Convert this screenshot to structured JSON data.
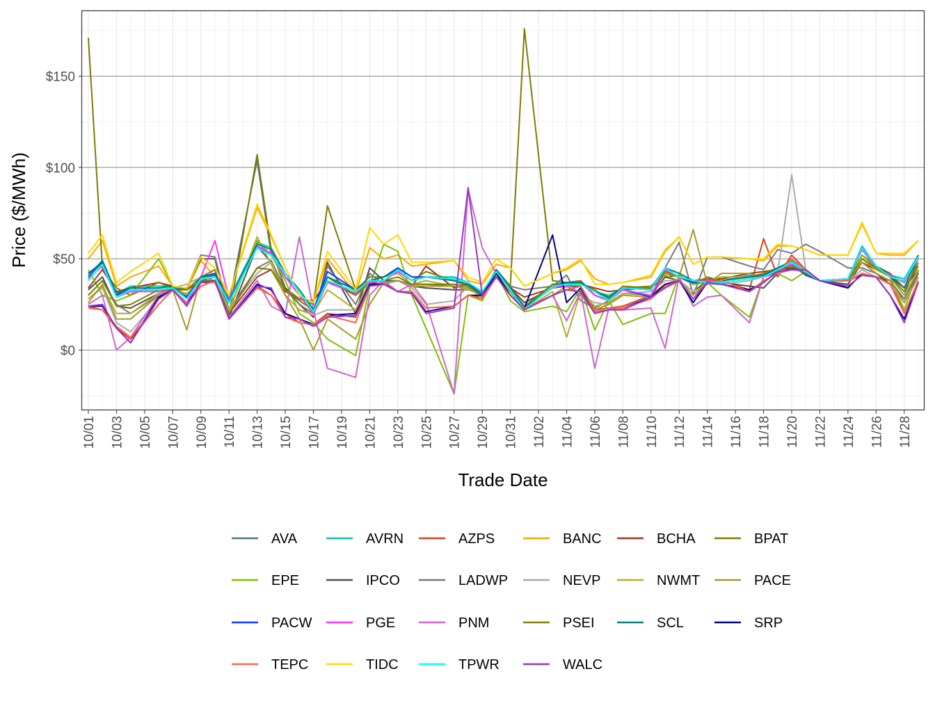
{
  "chart_data": {
    "type": "line",
    "title": "",
    "xlabel": "Trade Date",
    "ylabel": "Price ($/MWh)",
    "ylim": [
      -33,
      186
    ],
    "y_ticks": [
      0,
      50,
      100,
      150
    ],
    "y_tick_labels": [
      "$0",
      "$50",
      "$100",
      "$150"
    ],
    "x_tick_labels": [
      "10/01",
      "10/03",
      "10/05",
      "10/07",
      "10/09",
      "10/11",
      "10/13",
      "10/15",
      "10/17",
      "10/19",
      "10/21",
      "10/23",
      "10/25",
      "10/27",
      "10/29",
      "10/31",
      "11/02",
      "11/04",
      "11/06",
      "11/08",
      "11/10",
      "11/12",
      "11/14",
      "11/16",
      "11/18",
      "11/20",
      "11/22",
      "11/24",
      "11/26",
      "11/28"
    ],
    "x_range": [
      "10/01",
      "11/29"
    ],
    "grid": true,
    "legend_position": "bottom",
    "x": [
      "10/01",
      "10/02",
      "10/03",
      "10/04",
      "10/06",
      "10/07",
      "10/08",
      "10/09",
      "10/10",
      "10/11",
      "10/13",
      "10/14",
      "10/15",
      "10/16",
      "10/17",
      "10/18",
      "10/20",
      "10/21",
      "10/22",
      "10/23",
      "10/24",
      "10/25",
      "10/27",
      "10/28",
      "10/29",
      "10/30",
      "10/31",
      "11/01",
      "11/03",
      "11/04",
      "11/05",
      "11/06",
      "11/07",
      "11/08",
      "11/10",
      "11/11",
      "11/12",
      "11/13",
      "11/14",
      "11/15",
      "11/17",
      "11/18",
      "11/19",
      "11/20",
      "11/21",
      "11/22",
      "11/24",
      "11/25",
      "11/26",
      "11/27",
      "11/28",
      "11/29"
    ],
    "series": [
      {
        "name": "AVA",
        "color": "#4E7389",
        "values": [
          40,
          48,
          31,
          33,
          33,
          34,
          29,
          38,
          40,
          26,
          104,
          52,
          40,
          33,
          22,
          40,
          33,
          38,
          40,
          44,
          38,
          40,
          39,
          37,
          30,
          44,
          35,
          23,
          35,
          36,
          37,
          32,
          27,
          34,
          33,
          44,
          40,
          37,
          38,
          38,
          40,
          40,
          43,
          47,
          41,
          38,
          39,
          55,
          46,
          40,
          30,
          51
        ]
      },
      {
        "name": "AVRN",
        "color": "#00C5A8",
        "values": [
          41,
          49,
          31,
          35,
          35,
          35,
          28,
          40,
          41,
          28,
          59,
          56,
          42,
          33,
          22,
          40,
          33,
          38,
          40,
          45,
          40,
          40,
          40,
          37,
          31,
          44,
          34,
          23,
          36,
          37,
          37,
          32,
          30,
          34,
          34,
          45,
          42,
          38,
          38,
          38,
          41,
          40,
          45,
          49,
          43,
          38,
          39,
          57,
          46,
          41,
          39,
          52
        ]
      },
      {
        "name": "AZPS",
        "color": "#D9401F",
        "values": [
          24,
          22,
          12,
          6,
          25,
          33,
          26,
          35,
          38,
          17,
          35,
          30,
          20,
          15,
          14,
          20,
          18,
          35,
          37,
          32,
          32,
          23,
          24,
          30,
          29,
          40,
          30,
          22,
          30,
          33,
          35,
          22,
          23,
          24,
          30,
          36,
          38,
          30,
          37,
          38,
          33,
          61,
          40,
          52,
          44,
          38,
          38,
          41,
          40,
          38,
          20,
          38
        ]
      },
      {
        "name": "BANC",
        "color": "#FFA500",
        "values": [
          50,
          60,
          35,
          40,
          46,
          35,
          33,
          49,
          40,
          30,
          78,
          62,
          45,
          30,
          26,
          50,
          31,
          56,
          50,
          52,
          46,
          47,
          49,
          38,
          36,
          47,
          45,
          35,
          42,
          44,
          49,
          39,
          36,
          37,
          40,
          54,
          62,
          47,
          51,
          51,
          50,
          49,
          57,
          57,
          55,
          52,
          52,
          69,
          53,
          52,
          52,
          60
        ]
      },
      {
        "name": "BCHA",
        "color": "#A0361E",
        "values": [
          34,
          44,
          32,
          34,
          37,
          35,
          33,
          37,
          37,
          20,
          40,
          44,
          32,
          28,
          27,
          38,
          30,
          37,
          36,
          38,
          35,
          46,
          34,
          36,
          30,
          40,
          34,
          29,
          34,
          36,
          36,
          34,
          32,
          33,
          34,
          40,
          41,
          36,
          39,
          39,
          42,
          43,
          44,
          45,
          42,
          38,
          38,
          48,
          44,
          41,
          34,
          44
        ]
      },
      {
        "name": "BPAT",
        "color": "#7F7A00",
        "values": [
          171,
          45,
          34,
          30,
          37,
          34,
          33,
          40,
          44,
          19,
          107,
          55,
          34,
          28,
          25,
          79,
          33,
          40,
          40,
          44,
          38,
          43,
          38,
          35,
          30,
          44,
          35,
          176,
          38,
          37,
          38,
          30,
          27,
          34,
          35,
          42,
          40,
          36,
          40,
          38,
          40,
          42,
          45,
          47,
          43,
          38,
          39,
          52,
          46,
          42,
          34,
          46
        ]
      },
      {
        "name": "EPE",
        "color": "#7FBF00",
        "values": [
          44,
          30,
          27,
          30,
          50,
          35,
          30,
          37,
          38,
          22,
          60,
          52,
          38,
          20,
          15,
          6,
          -3,
          35,
          58,
          54,
          30,
          12,
          -24,
          30,
          27,
          42,
          27,
          21,
          24,
          21,
          34,
          11,
          27,
          14,
          20,
          20,
          41,
          36,
          37,
          30,
          18,
          40,
          42,
          38,
          43,
          38,
          39,
          52,
          45,
          40,
          22,
          44
        ]
      },
      {
        "name": "IPCO",
        "color": "#4D4D4D",
        "values": [
          33,
          40,
          24,
          23,
          31,
          33,
          34,
          50,
          50,
          18,
          57,
          48,
          34,
          25,
          18,
          48,
          20,
          45,
          38,
          38,
          35,
          34,
          33,
          33,
          32,
          40,
          34,
          26,
          34,
          35,
          35,
          22,
          25,
          31,
          30,
          40,
          38,
          32,
          38,
          37,
          35,
          34,
          42,
          45,
          42,
          38,
          36,
          48,
          42,
          36,
          28,
          42
        ]
      },
      {
        "name": "LADWP",
        "color": "#787878",
        "values": [
          30,
          38,
          25,
          20,
          30,
          34,
          34,
          52,
          51,
          22,
          45,
          49,
          33,
          25,
          20,
          46,
          25,
          42,
          36,
          38,
          36,
          36,
          35,
          34,
          32,
          40,
          35,
          33,
          35,
          41,
          27,
          23,
          27,
          34,
          34,
          45,
          59,
          30,
          51,
          51,
          46,
          44,
          55,
          53,
          58,
          54,
          45,
          45,
          42,
          38,
          28,
          43
        ]
      },
      {
        "name": "NEVP",
        "color": "#AAAAAA",
        "values": [
          28,
          34,
          15,
          10,
          28,
          34,
          36,
          40,
          40,
          22,
          42,
          48,
          30,
          22,
          19,
          22,
          22,
          36,
          36,
          38,
          34,
          25,
          27,
          35,
          28,
          40,
          30,
          23,
          34,
          36,
          30,
          26,
          25,
          31,
          32,
          38,
          38,
          32,
          36,
          36,
          38,
          40,
          42,
          96,
          44,
          38,
          38,
          44,
          40,
          36,
          26,
          40
        ]
      },
      {
        "name": "NWMT",
        "color": "#AFAF28",
        "values": [
          28,
          35,
          20,
          20,
          31,
          33,
          31,
          38,
          37,
          21,
          62,
          47,
          30,
          22,
          20,
          33,
          22,
          38,
          40,
          42,
          36,
          38,
          35,
          33,
          30,
          42,
          32,
          22,
          32,
          7,
          32,
          24,
          26,
          31,
          30,
          41,
          38,
          30,
          38,
          40,
          40,
          42,
          44,
          48,
          42,
          38,
          38,
          50,
          44,
          40,
          30,
          44
        ]
      },
      {
        "name": "PACE",
        "color": "#A89A28",
        "values": [
          26,
          36,
          17,
          17,
          30,
          33,
          11,
          40,
          38,
          20,
          45,
          44,
          30,
          17,
          0,
          17,
          6,
          25,
          37,
          38,
          35,
          35,
          35,
          34,
          30,
          40,
          32,
          22,
          30,
          35,
          30,
          22,
          25,
          30,
          29,
          42,
          40,
          66,
          36,
          42,
          42,
          40,
          44,
          48,
          42,
          38,
          38,
          48,
          42,
          38,
          26,
          40
        ]
      },
      {
        "name": "PACW",
        "color": "#0A3CFF",
        "values": [
          42,
          48,
          30,
          33,
          33,
          34,
          29,
          40,
          42,
          26,
          57,
          52,
          42,
          32,
          22,
          43,
          33,
          38,
          40,
          45,
          40,
          40,
          39,
          37,
          30,
          44,
          34,
          23,
          35,
          37,
          37,
          30,
          27,
          33,
          29,
          44,
          40,
          37,
          38,
          38,
          40,
          41,
          44,
          47,
          41,
          38,
          39,
          56,
          46,
          41,
          37,
          51
        ]
      },
      {
        "name": "PGE",
        "color": "#FF33FF",
        "values": [
          39,
          46,
          29,
          32,
          32,
          33,
          26,
          40,
          60,
          28,
          57,
          53,
          40,
          30,
          20,
          37,
          31,
          37,
          38,
          43,
          38,
          40,
          38,
          36,
          30,
          44,
          33,
          23,
          35,
          35,
          37,
          30,
          27,
          33,
          30,
          44,
          40,
          38,
          38,
          38,
          40,
          40,
          44,
          47,
          43,
          38,
          39,
          55,
          45,
          41,
          37,
          50
        ]
      },
      {
        "name": "PNM",
        "color": "#CC66CC",
        "values": [
          25,
          30,
          0,
          7,
          30,
          33,
          26,
          35,
          38,
          18,
          38,
          24,
          20,
          62,
          22,
          -10,
          -15,
          30,
          38,
          32,
          36,
          26,
          -24,
          88,
          56,
          42,
          30,
          22,
          30,
          16,
          32,
          -10,
          23,
          22,
          23,
          1,
          40,
          24,
          29,
          30,
          15,
          40,
          42,
          44,
          43,
          38,
          38,
          41,
          40,
          36,
          20,
          37
        ]
      },
      {
        "name": "PSEI",
        "color": "#808000",
        "values": [
          30,
          38,
          24,
          25,
          33,
          33,
          33,
          38,
          38,
          20,
          45,
          44,
          33,
          27,
          22,
          40,
          30,
          38,
          38,
          40,
          36,
          36,
          36,
          35,
          30,
          42,
          34,
          24,
          36,
          36,
          36,
          33,
          28,
          35,
          34,
          43,
          40,
          38,
          39,
          38,
          40,
          42,
          44,
          46,
          42,
          38,
          38,
          50,
          45,
          40,
          32,
          48
        ]
      },
      {
        "name": "SCL",
        "color": "#008080",
        "values": [
          40,
          49,
          31,
          34,
          34,
          35,
          28,
          40,
          41,
          27,
          58,
          55,
          42,
          33,
          22,
          40,
          33,
          38,
          40,
          44,
          38,
          40,
          38,
          36,
          30,
          44,
          34,
          23,
          35,
          37,
          37,
          32,
          29,
          34,
          33,
          45,
          42,
          38,
          37,
          38,
          40,
          41,
          45,
          48,
          43,
          38,
          39,
          56,
          46,
          40,
          34,
          52
        ]
      },
      {
        "name": "SRP",
        "color": "#000080",
        "values": [
          24,
          24,
          12,
          4,
          29,
          33,
          25,
          37,
          38,
          17,
          36,
          33,
          20,
          17,
          14,
          19,
          20,
          36,
          36,
          32,
          31,
          21,
          24,
          30,
          30,
          42,
          30,
          23,
          63,
          26,
          34,
          21,
          22,
          23,
          29,
          36,
          38,
          26,
          37,
          36,
          33,
          37,
          43,
          44,
          44,
          38,
          34,
          42,
          40,
          30,
          17,
          37
        ]
      },
      {
        "name": "TEPC",
        "color": "#FF6347",
        "values": [
          23,
          22,
          13,
          7,
          25,
          33,
          25,
          35,
          38,
          17,
          34,
          30,
          18,
          15,
          14,
          19,
          15,
          35,
          36,
          32,
          32,
          23,
          24,
          30,
          28,
          40,
          30,
          23,
          30,
          33,
          35,
          21,
          22,
          23,
          28,
          35,
          38,
          28,
          37,
          38,
          32,
          38,
          42,
          50,
          44,
          38,
          38,
          42,
          40,
          36,
          20,
          38
        ]
      },
      {
        "name": "TIDC",
        "color": "#FFD700",
        "values": [
          53,
          63,
          37,
          43,
          53,
          35,
          34,
          51,
          45,
          30,
          80,
          63,
          45,
          30,
          26,
          54,
          33,
          67,
          58,
          63,
          48,
          48,
          49,
          40,
          37,
          50,
          45,
          35,
          42,
          45,
          50,
          36,
          36,
          37,
          41,
          55,
          62,
          47,
          51,
          51,
          50,
          50,
          58,
          57,
          55,
          52,
          52,
          70,
          53,
          53,
          53,
          60
        ]
      },
      {
        "name": "TPWR",
        "color": "#00FFFF",
        "values": [
          38,
          47,
          29,
          33,
          33,
          34,
          28,
          39,
          40,
          26,
          56,
          52,
          42,
          32,
          21,
          38,
          32,
          38,
          38,
          44,
          38,
          40,
          39,
          37,
          32,
          43,
          33,
          22,
          35,
          36,
          36,
          32,
          27,
          34,
          33,
          45,
          40,
          38,
          37,
          37,
          39,
          40,
          44,
          48,
          43,
          38,
          39,
          56,
          46,
          40,
          38,
          51
        ]
      },
      {
        "name": "WALC",
        "color": "#9932CC",
        "values": [
          24,
          25,
          12,
          4,
          28,
          33,
          24,
          37,
          38,
          17,
          35,
          34,
          18,
          17,
          13,
          18,
          19,
          35,
          36,
          32,
          31,
          20,
          23,
          89,
          30,
          40,
          30,
          22,
          30,
          33,
          32,
          20,
          22,
          22,
          29,
          34,
          38,
          28,
          37,
          36,
          32,
          37,
          43,
          44,
          44,
          38,
          35,
          41,
          40,
          30,
          15,
          37
        ]
      }
    ]
  }
}
